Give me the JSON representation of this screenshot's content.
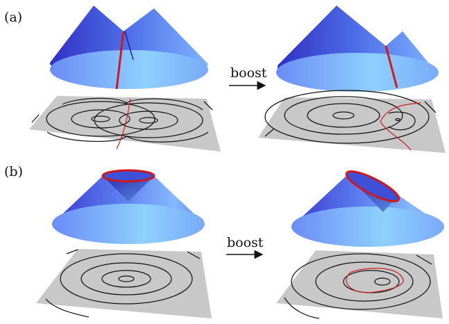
{
  "panels": [
    {
      "label": "(a)",
      "arrow_text": "boost"
    },
    {
      "label": "(b)",
      "arrow_text": "boost"
    }
  ],
  "colors": {
    "cone_dark": "#2f2fc8",
    "cone_light": "#8ec8ff",
    "sheet": "#c8c8c8",
    "contour": "#111111",
    "highlight": "#d01818"
  },
  "icons": {
    "arrow": "right-arrow-icon"
  }
}
